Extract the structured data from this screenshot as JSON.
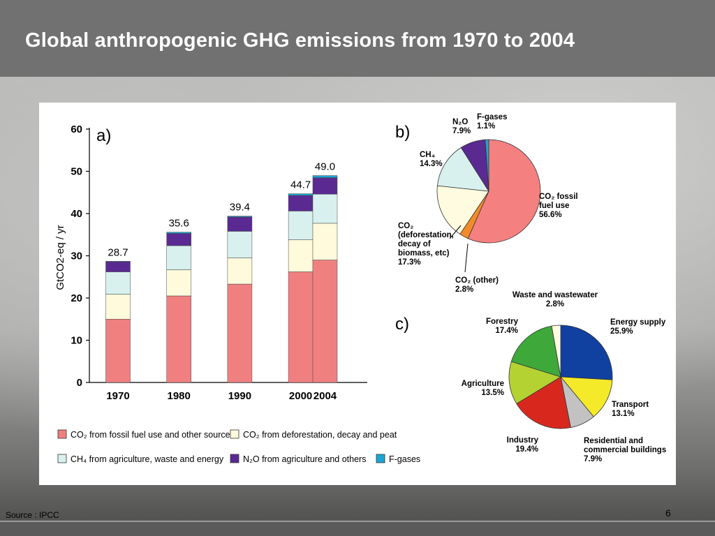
{
  "slide": {
    "title": "Global anthropogenic GHG emissions from 1970 to 2004",
    "source": "Source : IPCC",
    "page_number": "6"
  },
  "chart_data": [
    {
      "id": "a",
      "panel_label": "a)",
      "type": "bar",
      "stacked": true,
      "categories": [
        "1970",
        "1980",
        "1990",
        "2000",
        "2004"
      ],
      "x_positions": [
        1970,
        1980,
        1990,
        2000,
        2004
      ],
      "totals": [
        "28.7",
        "35.6",
        "39.4",
        "44.7",
        "49.0"
      ],
      "ylabel": "GtCO2-eq / yr",
      "ylim": [
        0,
        60
      ],
      "yticks": [
        0,
        10,
        20,
        30,
        40,
        50,
        60
      ],
      "series": [
        {
          "name": "CO2 from fossil fuel use and other sources",
          "color": "#f08080",
          "values": [
            15.0,
            20.5,
            23.3,
            26.2,
            29.0
          ]
        },
        {
          "name": "CO2 from deforestation, decay and peat",
          "color": "#fffadc",
          "values": [
            5.9,
            6.2,
            6.2,
            7.6,
            8.7
          ]
        },
        {
          "name": "CH4 from agriculture, waste and energy",
          "color": "#d9f1ee",
          "values": [
            5.3,
            5.7,
            6.3,
            6.8,
            6.9
          ]
        },
        {
          "name": "N2O from agriculture and others",
          "color": "#5a2a92",
          "values": [
            2.4,
            2.9,
            3.4,
            3.7,
            3.9
          ]
        },
        {
          "name": "F-gases",
          "color": "#1aa6d4",
          "values": [
            0.1,
            0.3,
            0.2,
            0.4,
            0.5
          ]
        }
      ],
      "legend": [
        {
          "text": "CO₂ from fossil fuel use and other sources",
          "color": "#f08080"
        },
        {
          "text": "CO₂ from deforestation, decay and peat",
          "color": "#fffadc"
        },
        {
          "text": "CH₄ from agriculture, waste and energy",
          "color": "#d9f1ee"
        },
        {
          "text": "N₂O from agriculture and others",
          "color": "#5a2a92"
        },
        {
          "text": "F-gases",
          "color": "#1aa6d4"
        }
      ],
      "grid": false
    },
    {
      "id": "b",
      "panel_label": "b)",
      "type": "pie",
      "slices": [
        {
          "lines": [
            "CO₂ fossil",
            "fuel use",
            "56.6%"
          ],
          "value": 56.6,
          "color": "#f58080"
        },
        {
          "lines": [
            "CO₂ (other)",
            "2.8%"
          ],
          "value": 2.8,
          "color": "#f28c28"
        },
        {
          "lines": [
            "CO₂",
            "(deforestation,",
            "decay of",
            "biomass, etc)",
            "17.3%"
          ],
          "value": 17.3,
          "color": "#fffbe0"
        },
        {
          "lines": [
            "CH₄",
            "14.3%"
          ],
          "value": 14.3,
          "color": "#d9f1ee"
        },
        {
          "lines": [
            "N₂O",
            "7.9%"
          ],
          "value": 7.9,
          "color": "#5a2a92"
        },
        {
          "lines": [
            "F-gases",
            "1.1%"
          ],
          "value": 1.1,
          "color": "#1aa6d4"
        }
      ]
    },
    {
      "id": "c",
      "panel_label": "c)",
      "type": "pie",
      "slices": [
        {
          "lines": [
            "Energy supply",
            "25.9%"
          ],
          "value": 25.9,
          "color": "#1040a0"
        },
        {
          "lines": [
            "Transport",
            "13.1%"
          ],
          "value": 13.1,
          "color": "#f4ea2a"
        },
        {
          "lines": [
            "Residential and",
            "commercial buildings",
            "7.9%"
          ],
          "value": 7.9,
          "color": "#c2c2c2"
        },
        {
          "lines": [
            "Industry",
            "19.4%"
          ],
          "value": 19.4,
          "color": "#d8281e"
        },
        {
          "lines": [
            "Agriculture",
            "13.5%"
          ],
          "value": 13.5,
          "color": "#b4d232"
        },
        {
          "lines": [
            "Forestry",
            "17.4%"
          ],
          "value": 17.4,
          "color": "#3ea83a"
        },
        {
          "lines": [
            "Waste and wastewater",
            "2.8%"
          ],
          "value": 2.8,
          "color": "#fffbe0"
        }
      ]
    }
  ]
}
